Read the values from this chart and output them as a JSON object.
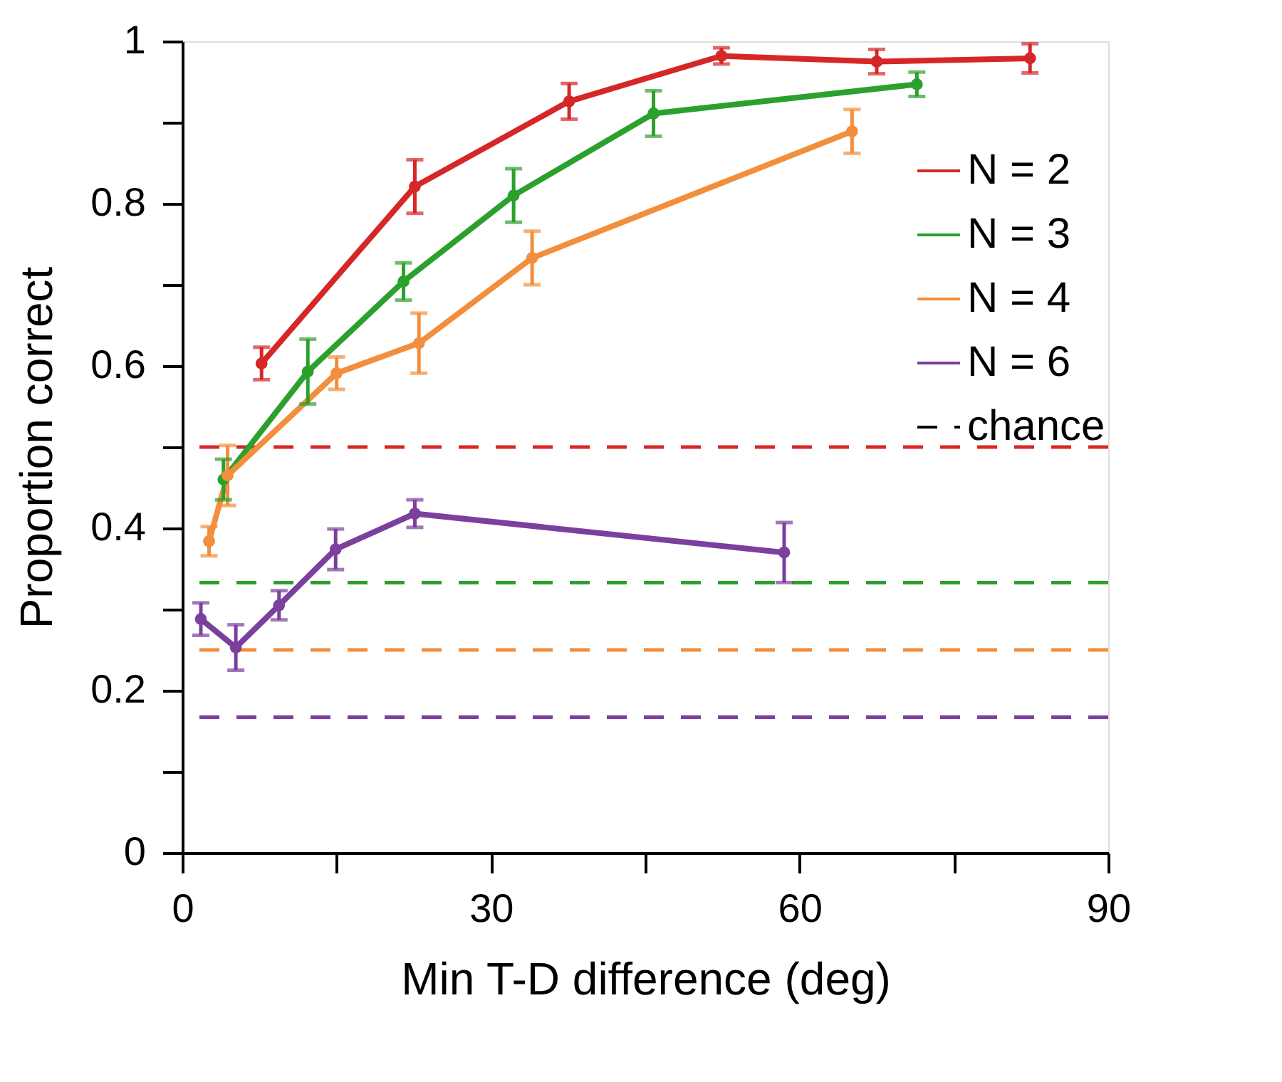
{
  "chart_data": {
    "type": "line",
    "xlabel": "Min T-D difference (deg)",
    "ylabel": "Proportion correct",
    "xlim": [
      0,
      90
    ],
    "xticks": [
      0,
      {
        "value": 15,
        "label": null
      },
      30,
      {
        "value": 45,
        "label": null
      },
      60,
      {
        "value": 75,
        "label": null
      },
      90
    ],
    "ylim": [
      0,
      1
    ],
    "yticks": [
      0,
      {
        "value": 0.1,
        "label": null
      },
      0.2,
      {
        "value": 0.3,
        "label": null
      },
      0.4,
      {
        "value": 0.5,
        "label": null
      },
      0.6,
      {
        "value": 0.7,
        "label": null
      },
      0.8,
      {
        "value": 0.9,
        "label": null
      },
      1
    ],
    "grid": false,
    "legend": "top right",
    "marker": "circle",
    "line_style": "solid",
    "series": [
      {
        "name": "N = 2",
        "color": "#d62728",
        "x": [
          7.7,
          22.6,
          37.6,
          52.4,
          67.5,
          82.4
        ],
        "values": [
          0.603,
          0.821,
          0.926,
          0.982,
          0.975,
          0.979
        ],
        "errors": [
          0.02,
          0.033,
          0.022,
          0.01,
          0.015,
          0.018
        ]
      },
      {
        "name": "N = 3",
        "color": "#2ca02c",
        "x": [
          4.0,
          12.2,
          21.5,
          32.2,
          45.8,
          71.4
        ],
        "values": [
          0.46,
          0.593,
          0.704,
          0.81,
          0.911,
          0.947
        ],
        "errors": [
          0.025,
          0.04,
          0.023,
          0.033,
          0.028,
          0.015
        ]
      },
      {
        "name": "N = 4",
        "color": "#f28e3c",
        "x": [
          2.6,
          4.4,
          15.0,
          23.0,
          34.0,
          65.1
        ],
        "values": [
          0.384,
          0.465,
          0.591,
          0.628,
          0.733,
          0.889
        ],
        "errors": [
          0.018,
          0.037,
          0.02,
          0.037,
          0.033,
          0.027
        ]
      },
      {
        "name": "N = 6",
        "color": "#7b3f9e",
        "x": [
          1.8,
          5.2,
          9.4,
          14.9,
          22.6,
          58.5
        ],
        "values": [
          0.288,
          0.253,
          0.305,
          0.374,
          0.418,
          0.37
        ],
        "errors": [
          0.02,
          0.028,
          0.018,
          0.025,
          0.017,
          0.037
        ]
      }
    ],
    "ref_lines": [
      {
        "axis": "y",
        "value": 0.5,
        "label": "chance",
        "color": "#d62728",
        "line_style": "dashed"
      },
      {
        "axis": "y",
        "value": 0.333,
        "color": "#2ca02c",
        "line_style": "dashed"
      },
      {
        "axis": "y",
        "value": 0.25,
        "color": "#f28e3c",
        "line_style": "dashed"
      },
      {
        "axis": "y",
        "value": 0.167,
        "color": "#7b3f9e",
        "line_style": "dashed"
      }
    ]
  }
}
